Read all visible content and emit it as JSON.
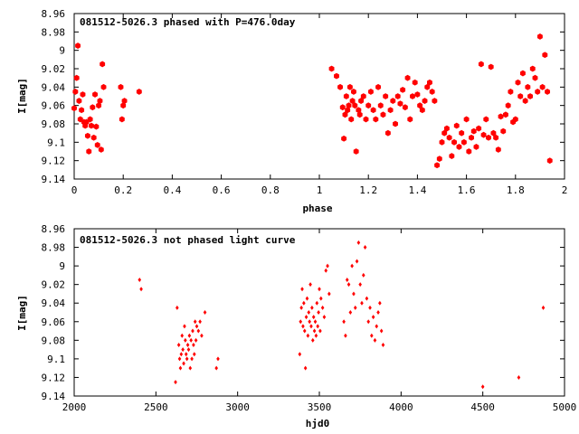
{
  "colors": {
    "points": "#ff0000",
    "axes": "#000000",
    "background": "#ffffff"
  },
  "chart_data": [
    {
      "type": "scatter",
      "title": "081512-5026.3 phased with P=476.0day",
      "xlabel": "phase",
      "ylabel": "I[mag]",
      "xlim": [
        0,
        2
      ],
      "ylim": [
        9.14,
        8.96
      ],
      "y_inverted": true,
      "grid": false,
      "xticks": [
        "0",
        "0.2",
        "0.4",
        "0.6",
        "0.8",
        "1",
        "1.2",
        "1.4",
        "1.6",
        "1.8",
        "2"
      ],
      "yticks": [
        "8.96",
        "8.98",
        "9",
        "9.02",
        "9.04",
        "9.06",
        "9.08",
        "9.1",
        "9.12",
        "9.14"
      ],
      "marker": "filled-hexagon",
      "series": [
        {
          "x": [
            0.0,
            0.005,
            0.01,
            0.015,
            0.02,
            0.025,
            0.03,
            0.035,
            0.04,
            0.045,
            0.05,
            0.055,
            0.06,
            0.065,
            0.07,
            0.075,
            0.08,
            0.085,
            0.09,
            0.095,
            0.1,
            0.105,
            0.11,
            0.115,
            0.12,
            0.19,
            0.195,
            0.2,
            0.205,
            0.265,
            1.05,
            1.07,
            1.085,
            1.095,
            1.1,
            1.105,
            1.11,
            1.115,
            1.12,
            1.125,
            1.13,
            1.135,
            1.14,
            1.145,
            1.15,
            1.16,
            1.165,
            1.17,
            1.18,
            1.19,
            1.2,
            1.21,
            1.22,
            1.23,
            1.24,
            1.25,
            1.26,
            1.27,
            1.28,
            1.29,
            1.3,
            1.31,
            1.32,
            1.33,
            1.34,
            1.35,
            1.36,
            1.37,
            1.38,
            1.39,
            1.4,
            1.41,
            1.42,
            1.43,
            1.44,
            1.45,
            1.46,
            1.47,
            1.48,
            1.49,
            1.5,
            1.51,
            1.52,
            1.53,
            1.54,
            1.55,
            1.56,
            1.57,
            1.58,
            1.59,
            1.6,
            1.61,
            1.62,
            1.63,
            1.64,
            1.65,
            1.66,
            1.67,
            1.68,
            1.69,
            1.7,
            1.71,
            1.72,
            1.73,
            1.74,
            1.75,
            1.76,
            1.77,
            1.78,
            1.79,
            1.8,
            1.81,
            1.82,
            1.83,
            1.84,
            1.85,
            1.86,
            1.87,
            1.88,
            1.89,
            1.9,
            1.91,
            1.92,
            1.93,
            1.94
          ],
          "y": [
            9.063,
            9.045,
            9.03,
            8.995,
            9.055,
            9.075,
            9.065,
            9.048,
            9.078,
            9.082,
            9.078,
            9.093,
            9.11,
            9.075,
            9.082,
            9.062,
            9.095,
            9.048,
            9.083,
            9.103,
            9.06,
            9.055,
            9.108,
            9.015,
            9.04,
            9.04,
            9.075,
            9.06,
            9.055,
            9.045,
            9.02,
            9.028,
            9.04,
            9.062,
            9.096,
            9.07,
            9.05,
            9.065,
            9.06,
            9.04,
            9.075,
            9.055,
            9.045,
            9.06,
            9.11,
            9.065,
            9.07,
            9.055,
            9.05,
            9.075,
            9.06,
            9.045,
            9.065,
            9.075,
            9.04,
            9.06,
            9.07,
            9.05,
            9.09,
            9.065,
            9.055,
            9.08,
            9.05,
            9.058,
            9.043,
            9.062,
            9.03,
            9.075,
            9.05,
            9.035,
            9.048,
            9.06,
            9.065,
            9.055,
            9.04,
            9.035,
            9.045,
            9.055,
            9.125,
            9.118,
            9.1,
            9.09,
            9.085,
            9.095,
            9.115,
            9.1,
            9.082,
            9.105,
            9.09,
            9.1,
            9.075,
            9.11,
            9.095,
            9.088,
            9.105,
            9.085,
            9.015,
            9.092,
            9.075,
            9.095,
            9.018,
            9.09,
            9.095,
            9.108,
            9.072,
            9.088,
            9.07,
            9.06,
            9.045,
            9.078,
            9.075,
            9.035,
            9.05,
            9.025,
            9.055,
            9.04,
            9.05,
            9.02,
            9.03,
            9.045,
            8.985,
            9.04,
            9.005,
            9.045,
            9.12
          ]
        }
      ]
    },
    {
      "type": "scatter",
      "title": "081512-5026.3 not phased light curve",
      "xlabel": "hjd0",
      "ylabel": "I[mag]",
      "xlim": [
        2000,
        5000
      ],
      "ylim": [
        9.14,
        8.96
      ],
      "y_inverted": true,
      "grid": false,
      "xticks": [
        "2000",
        "2500",
        "3000",
        "3500",
        "4000",
        "4500",
        "5000"
      ],
      "yticks": [
        "8.96",
        "8.98",
        "9",
        "9.02",
        "9.04",
        "9.06",
        "9.08",
        "9.1",
        "9.12",
        "9.14"
      ],
      "marker": "small-diamond",
      "series": [
        {
          "x": [
            2400,
            2410,
            2620,
            2630,
            2640,
            2645,
            2650,
            2655,
            2660,
            2665,
            2670,
            2675,
            2680,
            2685,
            2690,
            2695,
            2700,
            2705,
            2710,
            2715,
            2720,
            2725,
            2730,
            2735,
            2740,
            2745,
            2750,
            2760,
            2770,
            2780,
            2800,
            2870,
            2880,
            3380,
            3385,
            3390,
            3395,
            3400,
            3405,
            3410,
            3415,
            3420,
            3425,
            3430,
            3435,
            3440,
            3445,
            3450,
            3455,
            3460,
            3465,
            3470,
            3475,
            3480,
            3485,
            3490,
            3495,
            3500,
            3505,
            3510,
            3520,
            3530,
            3540,
            3550,
            3560,
            3650,
            3660,
            3670,
            3680,
            3690,
            3700,
            3710,
            3720,
            3730,
            3740,
            3750,
            3760,
            3770,
            3780,
            3790,
            3800,
            3810,
            3820,
            3830,
            3840,
            3850,
            3860,
            3870,
            3880,
            3890,
            4500,
            4720,
            4870
          ],
          "y": [
            9.015,
            9.025,
            9.125,
            9.045,
            9.085,
            9.1,
            9.11,
            9.095,
            9.075,
            9.09,
            9.105,
            9.065,
            9.08,
            9.095,
            9.1,
            9.085,
            9.09,
            9.075,
            9.11,
            9.08,
            9.1,
            9.07,
            9.085,
            9.095,
            9.06,
            9.08,
            9.065,
            9.07,
            9.06,
            9.075,
            9.05,
            9.11,
            9.1,
            9.095,
            9.06,
            9.045,
            9.025,
            9.065,
            9.04,
            9.07,
            9.11,
            9.055,
            9.035,
            9.075,
            9.05,
            9.06,
            9.02,
            9.065,
            9.045,
            9.08,
            9.055,
            9.07,
            9.06,
            9.075,
            9.04,
            9.065,
            9.05,
            9.025,
            9.07,
            9.035,
            9.045,
            9.055,
            9.005,
            9.0,
            9.03,
            9.06,
            9.075,
            9.015,
            9.02,
            9.05,
            9.0,
            9.03,
            9.045,
            8.995,
            8.975,
            9.02,
            9.04,
            9.01,
            8.98,
            9.035,
            9.06,
            9.045,
            9.075,
            9.055,
            9.08,
            9.065,
            9.05,
            9.04,
            9.07,
            9.085,
            9.13,
            9.12,
            9.045
          ]
        }
      ]
    }
  ]
}
